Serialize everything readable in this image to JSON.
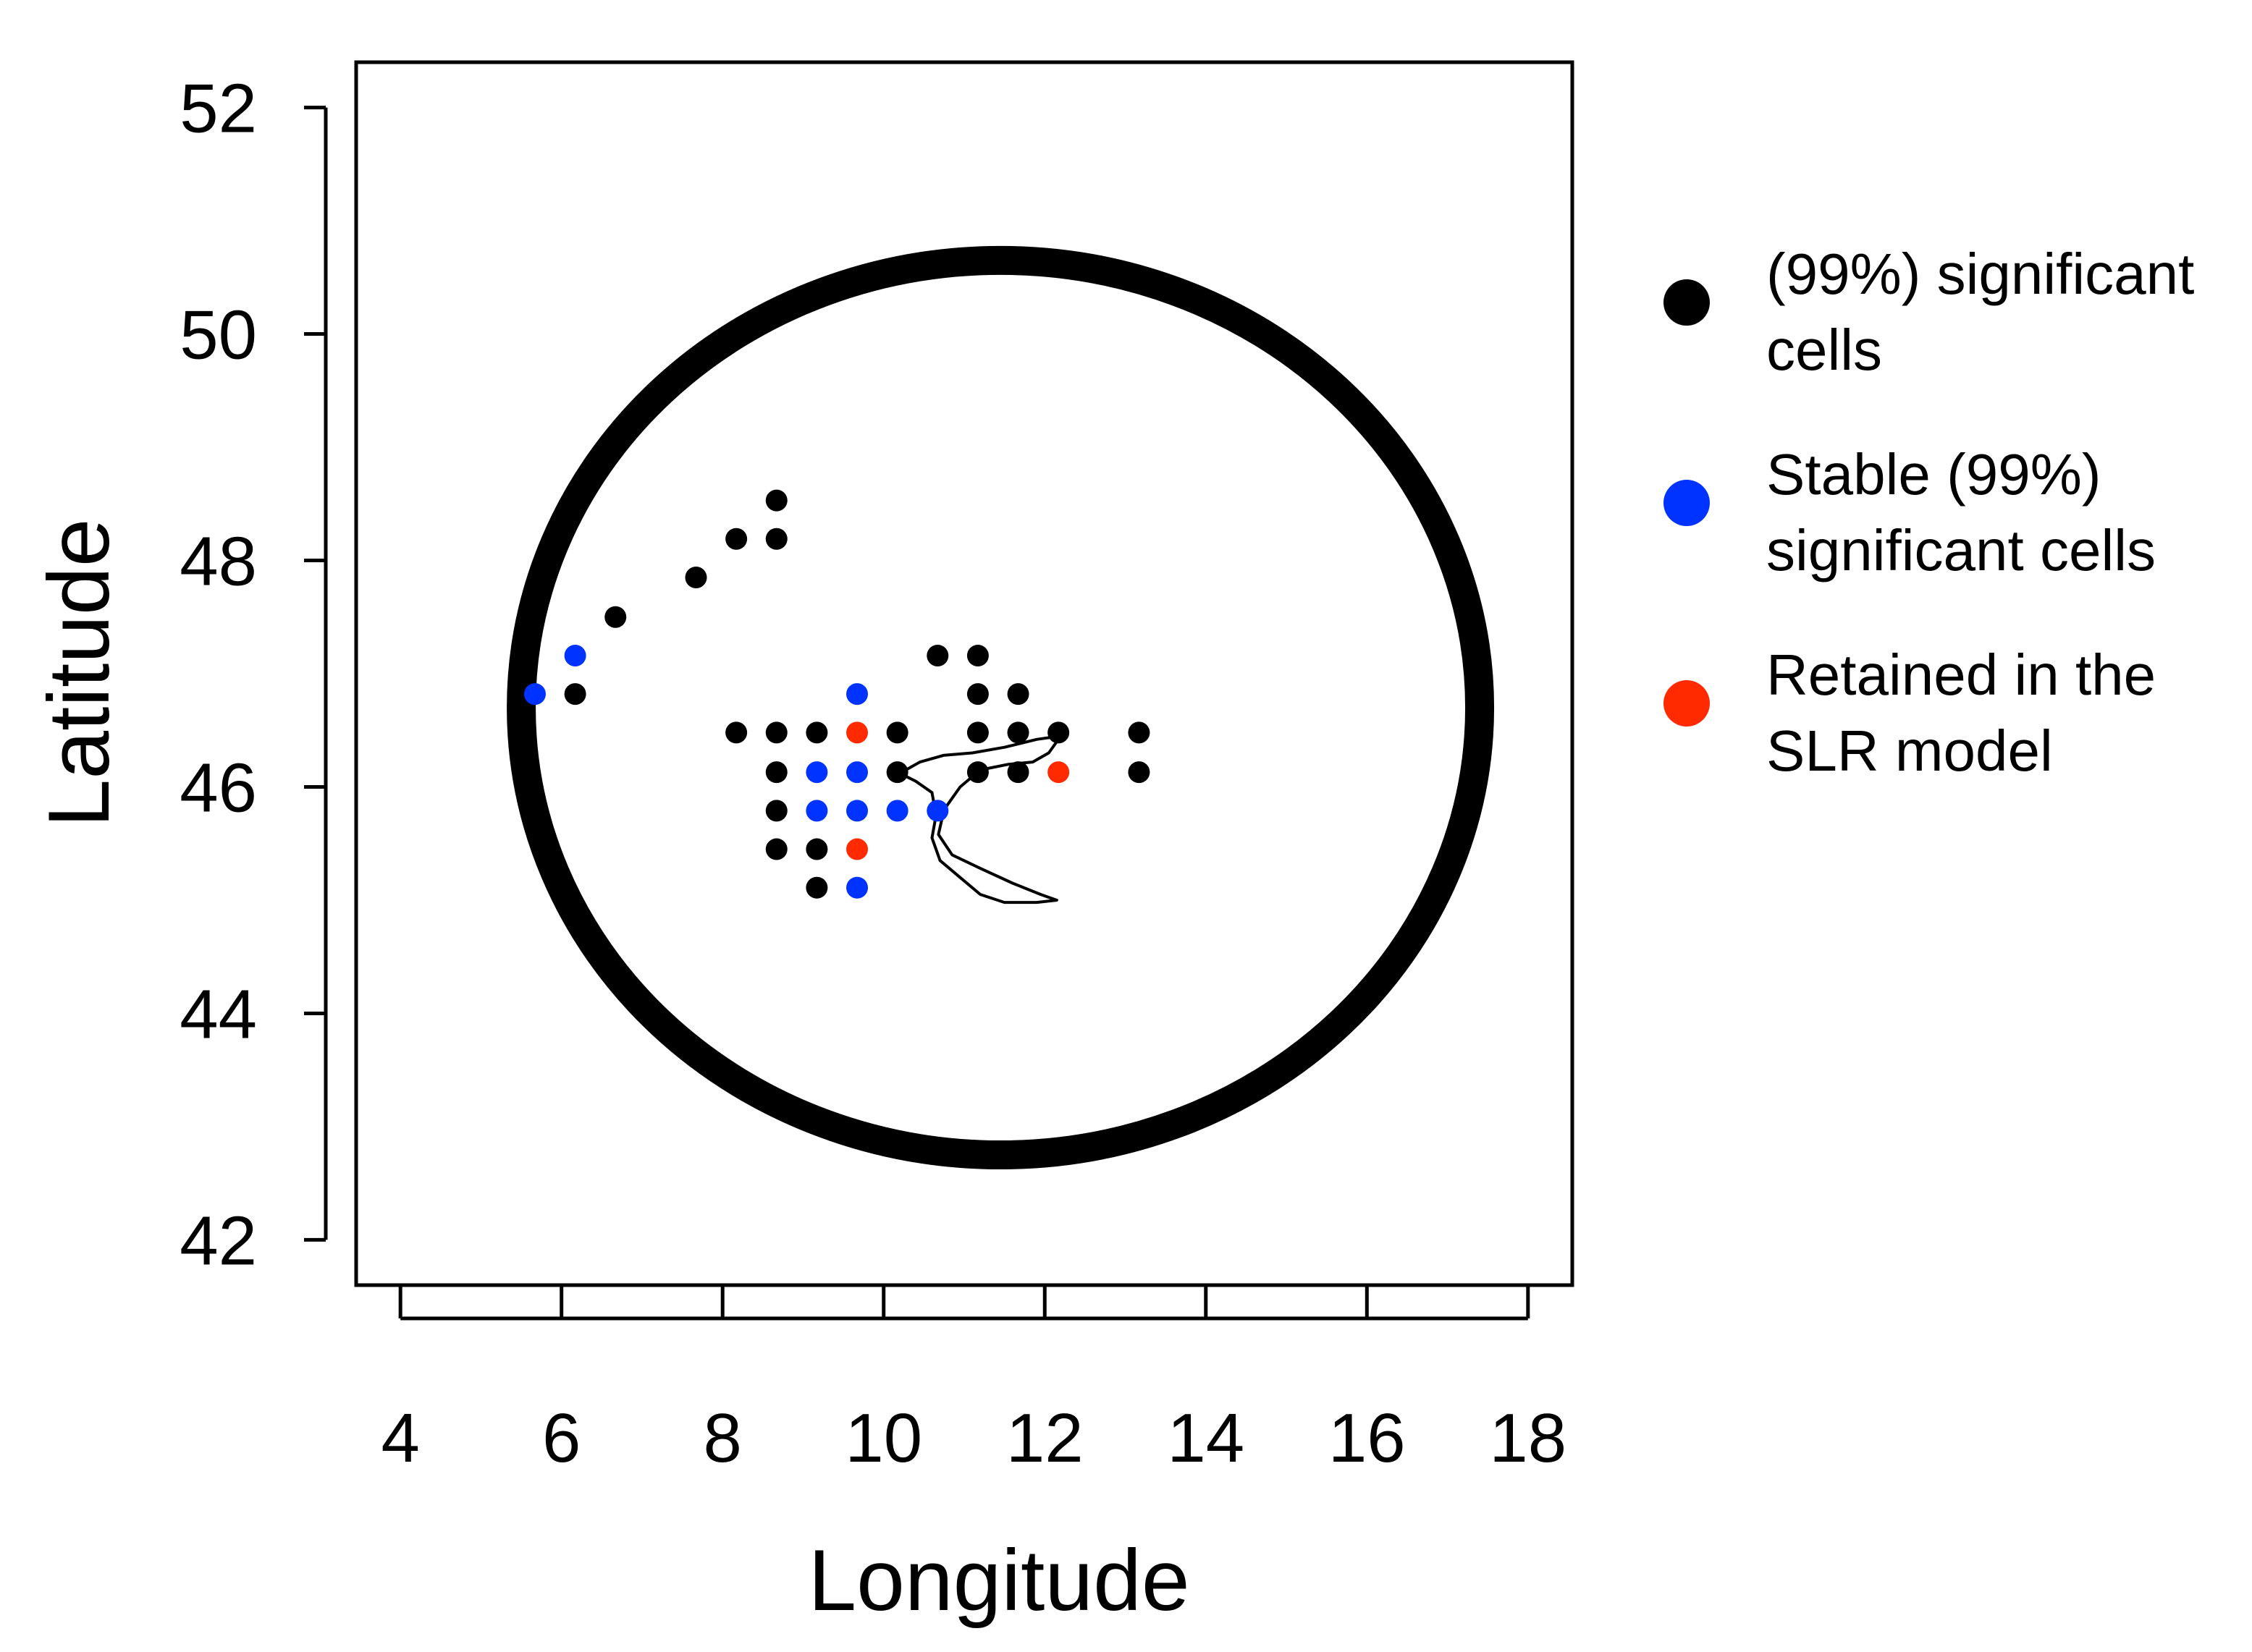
{
  "chart_data": {
    "type": "scatter",
    "title": "",
    "xlabel": "Longitude",
    "ylabel": "Latitude",
    "xlim": [
      3.45,
      18.55
    ],
    "ylim": [
      41.6,
      52.4
    ],
    "x_ticks": [
      4,
      6,
      8,
      10,
      12,
      14,
      16,
      18
    ],
    "y_ticks": [
      42,
      44,
      46,
      48,
      50,
      52
    ],
    "x_tick_labels": [
      "4",
      "6",
      "8",
      "10",
      "12",
      "14",
      "16",
      "18"
    ],
    "y_tick_labels": [
      "42",
      "44",
      "46",
      "48",
      "50",
      "52"
    ],
    "grid": false,
    "legend_position": "right",
    "series": [
      {
        "name": "(99%) significant cells",
        "legend_lines": [
          "(99%) significant",
          "cells"
        ],
        "color": "#000000",
        "points": [
          [
            8.67,
            48.53
          ],
          [
            8.17,
            48.19
          ],
          [
            8.67,
            48.19
          ],
          [
            7.67,
            47.85
          ],
          [
            6.67,
            47.5
          ],
          [
            6.17,
            46.82
          ],
          [
            10.67,
            47.16
          ],
          [
            11.17,
            47.16
          ],
          [
            11.17,
            46.82
          ],
          [
            11.67,
            46.82
          ],
          [
            8.17,
            46.48
          ],
          [
            8.67,
            46.48
          ],
          [
            9.17,
            46.48
          ],
          [
            10.17,
            46.48
          ],
          [
            11.17,
            46.48
          ],
          [
            11.67,
            46.48
          ],
          [
            12.17,
            46.48
          ],
          [
            13.17,
            46.48
          ],
          [
            8.67,
            46.13
          ],
          [
            10.17,
            46.13
          ],
          [
            11.17,
            46.13
          ],
          [
            11.67,
            46.13
          ],
          [
            13.17,
            46.13
          ],
          [
            8.67,
            45.79
          ],
          [
            8.67,
            45.45
          ],
          [
            9.17,
            45.45
          ],
          [
            9.17,
            45.11
          ]
        ]
      },
      {
        "name": "Stable (99%) significant cells",
        "legend_lines": [
          "Stable (99%)",
          "significant cells"
        ],
        "color": "#0033ff",
        "points": [
          [
            5.67,
            46.82
          ],
          [
            6.17,
            47.16
          ],
          [
            9.67,
            46.82
          ],
          [
            9.17,
            46.13
          ],
          [
            9.67,
            46.13
          ],
          [
            9.17,
            45.79
          ],
          [
            9.67,
            45.79
          ],
          [
            10.17,
            45.79
          ],
          [
            10.67,
            45.79
          ],
          [
            9.67,
            45.11
          ]
        ]
      },
      {
        "name": "Retained in the SLR model",
        "legend_lines": [
          "Retained in the",
          "SLR model"
        ],
        "color": "#ff2a00",
        "points": [
          [
            9.67,
            46.48
          ],
          [
            12.17,
            46.13
          ],
          [
            9.67,
            45.45
          ]
        ]
      }
    ],
    "annotations": [
      {
        "kind": "circle",
        "center": [
          11.45,
          46.7
        ],
        "radius_x": 5.95,
        "radius_y": 3.95,
        "description": "thick black ring outlining the study region"
      },
      {
        "kind": "boundary",
        "description": "river-basin outline",
        "polyline": [
          [
            10.2,
            46.12
          ],
          [
            10.45,
            46.22
          ],
          [
            10.75,
            46.28
          ],
          [
            11.1,
            46.3
          ],
          [
            11.5,
            46.35
          ],
          [
            11.9,
            46.42
          ],
          [
            12.2,
            46.45
          ],
          [
            12.05,
            46.3
          ],
          [
            11.85,
            46.22
          ],
          [
            11.55,
            46.2
          ],
          [
            11.2,
            46.15
          ],
          [
            10.95,
            46.0
          ],
          [
            10.75,
            45.8
          ],
          [
            10.68,
            45.58
          ],
          [
            10.85,
            45.4
          ],
          [
            11.2,
            45.28
          ],
          [
            11.6,
            45.15
          ],
          [
            11.95,
            45.05
          ],
          [
            12.15,
            45.0
          ],
          [
            11.9,
            44.98
          ],
          [
            11.5,
            44.98
          ],
          [
            11.2,
            45.05
          ],
          [
            10.95,
            45.2
          ],
          [
            10.7,
            45.35
          ],
          [
            10.6,
            45.55
          ],
          [
            10.65,
            45.75
          ],
          [
            10.6,
            45.95
          ],
          [
            10.4,
            46.05
          ],
          [
            10.2,
            46.12
          ]
        ]
      }
    ]
  }
}
